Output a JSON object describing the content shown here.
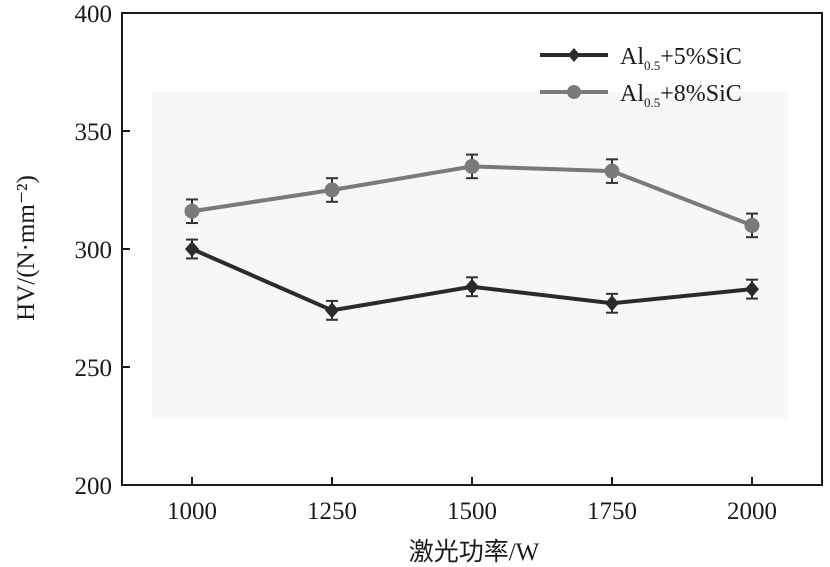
{
  "chart_data": {
    "type": "line",
    "xlabel": "激光功率/W",
    "ylabel": "HV/(N·mm⁻²)",
    "x": [
      1000,
      1250,
      1500,
      1750,
      2000
    ],
    "xlim": [
      875,
      2125
    ],
    "ylim": [
      200,
      400
    ],
    "xticks": [
      "1000",
      "1250",
      "1500",
      "1750",
      "2000"
    ],
    "yticks": [
      "200",
      "250",
      "300",
      "350",
      "400"
    ],
    "grid": false,
    "legend_position": "top-right",
    "series": [
      {
        "label_main": "Al",
        "label_sub": "0.5",
        "label_rest": "+5%SiC",
        "marker": "diamond",
        "color": "#2b2b2b",
        "values": [
          300,
          274,
          284,
          277,
          283
        ],
        "error": [
          4,
          4,
          4,
          4,
          4
        ]
      },
      {
        "label_main": "Al",
        "label_sub": "0.5",
        "label_rest": "+8%SiC",
        "marker": "circle",
        "color": "#7a7a7a",
        "values": [
          316,
          325,
          335,
          333,
          310
        ],
        "error": [
          5,
          5,
          5,
          5,
          5
        ]
      }
    ]
  }
}
